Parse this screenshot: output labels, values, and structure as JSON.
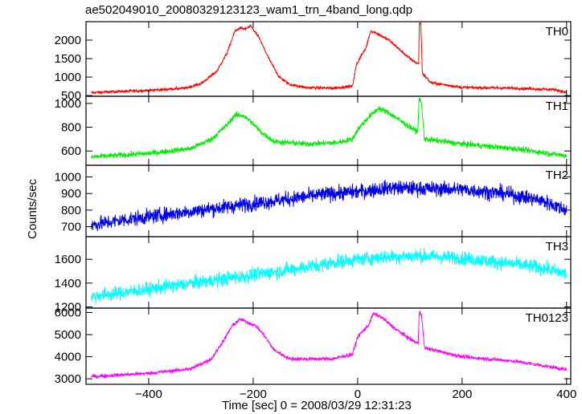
{
  "title": "ae502049010_20080329123123_wam1_trn_4band_long.qdp",
  "ylabel": "Counts/sec",
  "xlabel": "Time [sec] 0 = 2008/03/29 12:31:23",
  "chart_data": {
    "type": "line",
    "title": "ae502049010_20080329123123_wam1_trn_4band_long.qdp",
    "xlabel": "Time [sec] 0 = 2008/03/29 12:31:23",
    "ylabel": "Counts/sec",
    "xlim": [
      -520,
      408
    ],
    "xticks": [
      -400,
      -200,
      0,
      200,
      400
    ],
    "xtick_labels": [
      "−400",
      "−200",
      "0",
      "200",
      "400"
    ],
    "grid": false,
    "legend": "none",
    "panels": [
      {
        "name": "TH0",
        "color": "#ff0000",
        "ylim": [
          480,
          2500
        ],
        "yticks": [
          500,
          1000,
          1500,
          2000
        ],
        "noise": 35,
        "points": [
          [
            -510,
            580
          ],
          [
            -400,
            640
          ],
          [
            -330,
            700
          ],
          [
            -300,
            820
          ],
          [
            -270,
            1150
          ],
          [
            -250,
            1650
          ],
          [
            -235,
            2250
          ],
          [
            -225,
            2330
          ],
          [
            -215,
            2300
          ],
          [
            -205,
            2380
          ],
          [
            -190,
            2100
          ],
          [
            -170,
            1500
          ],
          [
            -150,
            1000
          ],
          [
            -130,
            800
          ],
          [
            -100,
            720
          ],
          [
            -50,
            700
          ],
          [
            -10,
            750
          ],
          [
            -3,
            1300
          ],
          [
            5,
            1550
          ],
          [
            15,
            1750
          ],
          [
            25,
            2250
          ],
          [
            35,
            2200
          ],
          [
            60,
            2000
          ],
          [
            80,
            1750
          ],
          [
            100,
            1500
          ],
          [
            117,
            1350
          ],
          [
            118,
            2450
          ],
          [
            121,
            2450
          ],
          [
            124,
            1100
          ],
          [
            140,
            850
          ],
          [
            200,
            720
          ],
          [
            300,
            700
          ],
          [
            380,
            660
          ],
          [
            400,
            570
          ]
        ]
      },
      {
        "name": "TH1",
        "color": "#00ee00",
        "ylim": [
          480,
          1060
        ],
        "yticks": [
          600,
          800,
          1000
        ],
        "noise": 22,
        "points": [
          [
            -510,
            550
          ],
          [
            -400,
            580
          ],
          [
            -320,
            620
          ],
          [
            -280,
            700
          ],
          [
            -250,
            820
          ],
          [
            -235,
            900
          ],
          [
            -220,
            900
          ],
          [
            -205,
            850
          ],
          [
            -185,
            760
          ],
          [
            -160,
            680
          ],
          [
            -100,
            660
          ],
          [
            -40,
            670
          ],
          [
            -10,
            700
          ],
          [
            0,
            780
          ],
          [
            20,
            880
          ],
          [
            40,
            960
          ],
          [
            60,
            920
          ],
          [
            90,
            830
          ],
          [
            115,
            760
          ],
          [
            118,
            1050
          ],
          [
            122,
            1000
          ],
          [
            128,
            700
          ],
          [
            200,
            660
          ],
          [
            300,
            620
          ],
          [
            400,
            560
          ]
        ]
      },
      {
        "name": "TH2",
        "color": "#0000ee",
        "ylim": [
          640,
          1070
        ],
        "yticks": [
          700,
          800,
          900,
          1000
        ],
        "noise": 42,
        "points": [
          [
            -510,
            710
          ],
          [
            -450,
            740
          ],
          [
            -350,
            780
          ],
          [
            -250,
            820
          ],
          [
            -150,
            860
          ],
          [
            -50,
            900
          ],
          [
            0,
            910
          ],
          [
            60,
            935
          ],
          [
            120,
            930
          ],
          [
            200,
            925
          ],
          [
            280,
            900
          ],
          [
            350,
            860
          ],
          [
            400,
            800
          ]
        ]
      },
      {
        "name": "TH3",
        "color": "#00ffff",
        "ylim": [
          1190,
          1790
        ],
        "yticks": [
          1200,
          1400,
          1600
        ],
        "noise": 55,
        "points": [
          [
            -510,
            1290
          ],
          [
            -450,
            1320
          ],
          [
            -350,
            1380
          ],
          [
            -250,
            1440
          ],
          [
            -150,
            1500
          ],
          [
            -50,
            1570
          ],
          [
            0,
            1600
          ],
          [
            50,
            1620
          ],
          [
            120,
            1630
          ],
          [
            200,
            1610
          ],
          [
            300,
            1560
          ],
          [
            350,
            1530
          ],
          [
            400,
            1480
          ]
        ]
      },
      {
        "name": "TH0123",
        "color": "#ff00ff",
        "ylim": [
          2750,
          6200
        ],
        "yticks": [
          3000,
          4000,
          5000,
          6000
        ],
        "noise": 80,
        "points": [
          [
            -510,
            3100
          ],
          [
            -400,
            3250
          ],
          [
            -320,
            3450
          ],
          [
            -280,
            3900
          ],
          [
            -255,
            4800
          ],
          [
            -240,
            5400
          ],
          [
            -225,
            5700
          ],
          [
            -210,
            5550
          ],
          [
            -195,
            5400
          ],
          [
            -180,
            5000
          ],
          [
            -160,
            4300
          ],
          [
            -130,
            3900
          ],
          [
            -50,
            3900
          ],
          [
            -10,
            4100
          ],
          [
            0,
            4900
          ],
          [
            20,
            5400
          ],
          [
            30,
            5950
          ],
          [
            45,
            5800
          ],
          [
            70,
            5300
          ],
          [
            100,
            4800
          ],
          [
            116,
            4600
          ],
          [
            118,
            6050
          ],
          [
            122,
            5950
          ],
          [
            128,
            4400
          ],
          [
            200,
            4000
          ],
          [
            300,
            3800
          ],
          [
            380,
            3500
          ],
          [
            400,
            3400
          ]
        ]
      }
    ]
  }
}
